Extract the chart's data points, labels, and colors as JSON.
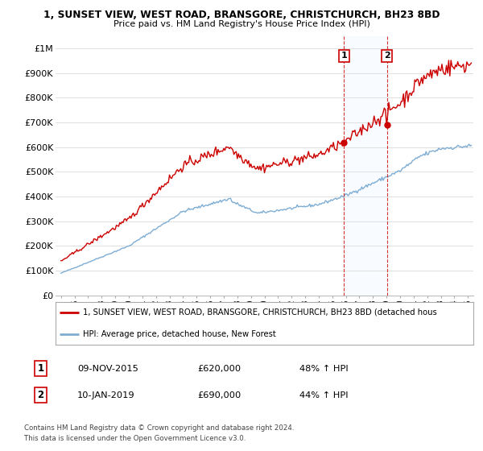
{
  "title1": "1, SUNSET VIEW, WEST ROAD, BRANSGORE, CHRISTCHURCH, BH23 8BD",
  "title2": "Price paid vs. HM Land Registry's House Price Index (HPI)",
  "ylim": [
    0,
    1050000
  ],
  "yticks": [
    0,
    100000,
    200000,
    300000,
    400000,
    500000,
    600000,
    700000,
    800000,
    900000,
    1000000
  ],
  "ytick_labels": [
    "£0",
    "£100K",
    "£200K",
    "£300K",
    "£400K",
    "£500K",
    "£600K",
    "£700K",
    "£800K",
    "£900K",
    "£1M"
  ],
  "sale1_x": 2015.86,
  "sale1_y": 620000,
  "sale1_date": "09-NOV-2015",
  "sale1_price": "£620,000",
  "sale1_hpi": "48% ↑ HPI",
  "sale2_x": 2019.03,
  "sale2_y": 690000,
  "sale2_date": "10-JAN-2019",
  "sale2_price": "£690,000",
  "sale2_hpi": "44% ↑ HPI",
  "red_line_color": "#cc0000",
  "blue_line_color": "#7eadd4",
  "vline_color": "#cc0000",
  "legend_label_red": "1, SUNSET VIEW, WEST ROAD, BRANSGORE, CHRISTCHURCH, BH23 8BD (detached hous",
  "legend_label_blue": "HPI: Average price, detached house, New Forest",
  "footer1": "Contains HM Land Registry data © Crown copyright and database right 2024.",
  "footer2": "This data is licensed under the Open Government Licence v3.0.",
  "background_color": "#ffffff",
  "grid_color": "#e0e0e0",
  "highlight_fill": "#ddeeff",
  "xlim_left": 1994.6,
  "xlim_right": 2025.4
}
